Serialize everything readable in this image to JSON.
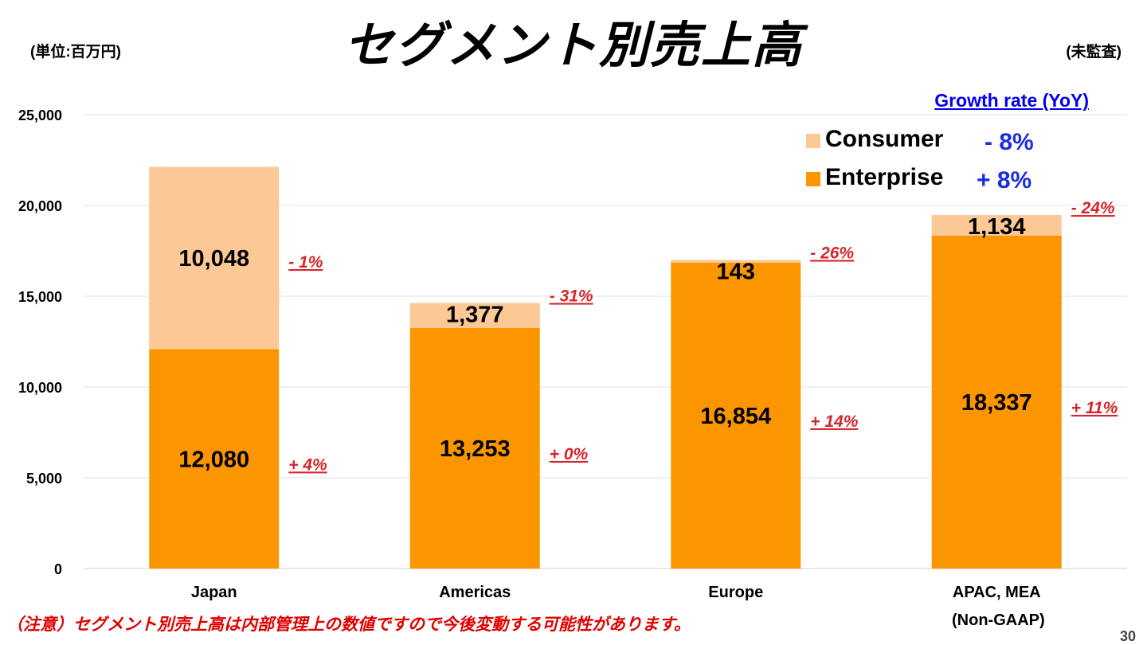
{
  "header": {
    "unit_label": "(単位:百万円)",
    "title": "セグメント別売上高",
    "audit_label": "(未監査)"
  },
  "growth_header": "Growth rate (YoY)",
  "legend": [
    {
      "label": "Consumer",
      "rate": "- 8%",
      "color": "#fbc896"
    },
    {
      "label": "Enterprise",
      "rate": "+ 8%",
      "color": "#fb9600"
    }
  ],
  "footnote": "（注意）セグメント別売上高は内部管理上の数値ですので今後変動する可能性があります。",
  "non_gaap_label": "(Non-GAAP)",
  "page_number": "30",
  "chart_data": {
    "type": "bar",
    "stacked": true,
    "categories": [
      "Japan",
      "Americas",
      "Europe",
      "APAC, MEA"
    ],
    "series": [
      {
        "name": "Enterprise",
        "values": [
          12080,
          13253,
          16854,
          18337
        ],
        "labels": [
          "12,080",
          "13,253",
          "16,854",
          "18,337"
        ],
        "growth": [
          "+ 4%",
          "+ 0%",
          "+ 14%",
          "+ 11%"
        ],
        "color": "#fb9600"
      },
      {
        "name": "Consumer",
        "values": [
          10048,
          1377,
          143,
          1134
        ],
        "labels": [
          "10,048",
          "1,377",
          "143",
          "1,134"
        ],
        "growth": [
          "- 1%",
          "- 31%",
          "- 26%",
          "- 24%"
        ],
        "color": "#fbc896"
      }
    ],
    "yticks": [
      "0",
      "5,000",
      "10,000",
      "15,000",
      "20,000",
      "25,000"
    ],
    "ylim": [
      0,
      25000
    ],
    "grid": true,
    "legend_position": "top-right"
  }
}
